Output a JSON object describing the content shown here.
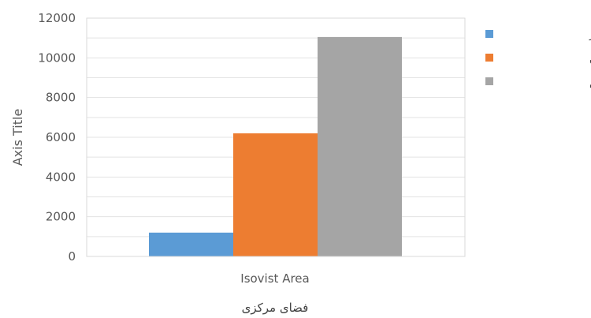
{
  "chart_data": {
    "type": "bar",
    "categories": [
      "Isovist Area"
    ],
    "series": [
      {
        "name": "مجتمع فجر",
        "values": [
          1200
        ],
        "color": "#5b9bd5"
      },
      {
        "name": "مجتمع امام حسن",
        "values": [
          6200
        ],
        "color": "#ed7d31"
      },
      {
        "name": "مجتمع نون و القلم",
        "values": [
          11050
        ],
        "color": "#a5a5a5"
      }
    ],
    "title": "",
    "xlabel": "فضای مرکزی",
    "ylabel": "Axis Title",
    "ylim": [
      0,
      12000
    ],
    "yticks": [
      0,
      2000,
      4000,
      6000,
      8000,
      10000,
      12000
    ],
    "grid": true,
    "legend_position": "right"
  }
}
